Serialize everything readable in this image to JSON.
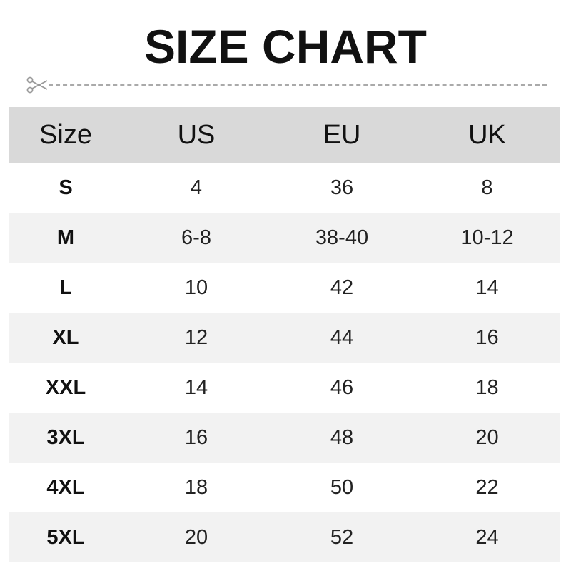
{
  "title": "SIZE CHART",
  "icons": {
    "cut": "scissors-icon"
  },
  "headers": [
    "Size",
    "US",
    "EU",
    "UK"
  ],
  "rows": [
    [
      "S",
      "4",
      "36",
      "8"
    ],
    [
      "M",
      "6-8",
      "38-40",
      "10-12"
    ],
    [
      "L",
      "10",
      "42",
      "14"
    ],
    [
      "XL",
      "12",
      "44",
      "16"
    ],
    [
      "XXL",
      "14",
      "46",
      "18"
    ],
    [
      "3XL",
      "16",
      "48",
      "20"
    ],
    [
      "4XL",
      "18",
      "50",
      "22"
    ],
    [
      "5XL",
      "20",
      "52",
      "24"
    ]
  ]
}
